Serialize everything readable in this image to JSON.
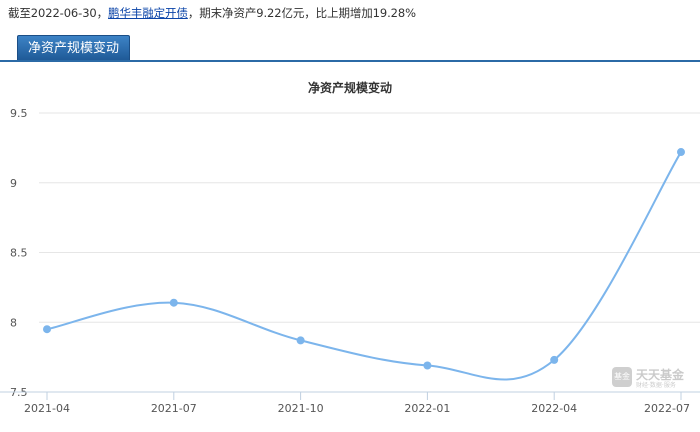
{
  "summary": {
    "prefix": "截至2022-06-30，",
    "fund_name": "鹏华丰融定开债",
    "suffix": "，期末净资产9.22亿元，比上期增加19.28%"
  },
  "tab": {
    "label": "净资产规模变动"
  },
  "chart_data": {
    "type": "line",
    "title": "净资产规模变动",
    "xlabel": "",
    "ylabel": "",
    "categories": [
      "2021-04",
      "2021-07",
      "2021-10",
      "2022-01",
      "2022-04",
      "2022-07"
    ],
    "series": [
      {
        "values": [
          7.95,
          8.14,
          7.87,
          7.69,
          7.73,
          9.22
        ]
      }
    ],
    "ylim": [
      7.5,
      9.5
    ],
    "yticks": [
      "7.5",
      "8",
      "8.5",
      "9",
      "9.5"
    ],
    "grid": true,
    "line_color": "#7cb5ec"
  },
  "watermark": {
    "logo_text": "基金",
    "brand": "天天基金",
    "tagline": "财经·数据·服务"
  }
}
